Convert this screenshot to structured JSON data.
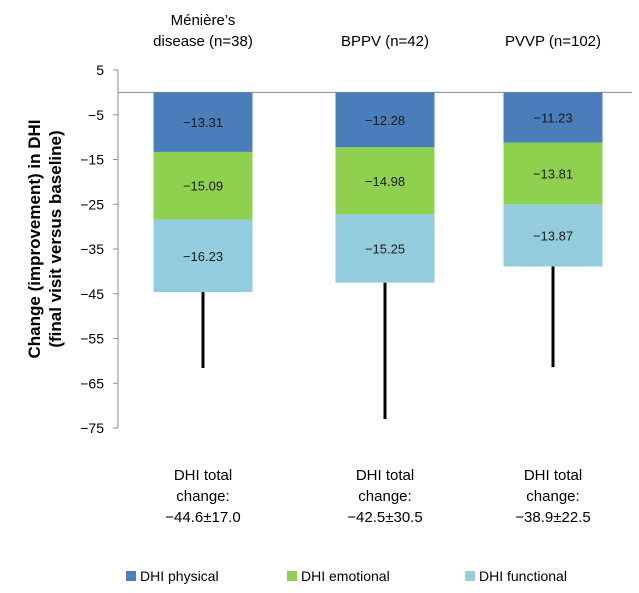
{
  "chart_data": {
    "type": "bar",
    "stacked": true,
    "title": "",
    "ylabel_lines": [
      "Change (improvement) in DHI",
      "(final visit versus baseline)"
    ],
    "xlabel": "",
    "ylim": [
      -75,
      5
    ],
    "yticks": [
      5,
      -5,
      -15,
      -25,
      -35,
      -45,
      -55,
      -65,
      -75
    ],
    "ytick_labels": [
      "5",
      "−5",
      "−15",
      "−25",
      "−35",
      "−45",
      "−55",
      "−65",
      "−75"
    ],
    "grid": false,
    "legend_position": "bottom",
    "categories": [
      {
        "header_lines": [
          "Ménière’s",
          "disease (n=38)"
        ],
        "total_lines": [
          "DHI total",
          "change:",
          "−44.6±17.0"
        ],
        "total_mean": -44.6,
        "total_sd": 17.0
      },
      {
        "header_lines": [
          "BPPV (n=42)"
        ],
        "total_lines": [
          "DHI total",
          "change:",
          "−42.5±30.5"
        ],
        "total_mean": -42.5,
        "total_sd": 30.5
      },
      {
        "header_lines": [
          "PVVP (n=102)"
        ],
        "total_lines": [
          "DHI total",
          "change:",
          "−38.9±22.5"
        ],
        "total_mean": -38.9,
        "total_sd": 22.5
      }
    ],
    "series": [
      {
        "name": "DHI physical",
        "color": "#4a7ebb",
        "values": [
          -13.31,
          -12.28,
          -11.23
        ],
        "labels": [
          "−13.31",
          "−12.28",
          "−11.23"
        ]
      },
      {
        "name": "DHI emotional",
        "color": "#8fd14f",
        "values": [
          -15.09,
          -14.98,
          -13.81
        ],
        "labels": [
          "−15.09",
          "−14.98",
          "−13.81"
        ]
      },
      {
        "name": "DHI functional",
        "color": "#93cddd",
        "values": [
          -16.23,
          -15.25,
          -13.87
        ],
        "labels": [
          "−16.23",
          "−15.25",
          "−13.87"
        ]
      }
    ],
    "error_bar": "minus one SD below total"
  }
}
